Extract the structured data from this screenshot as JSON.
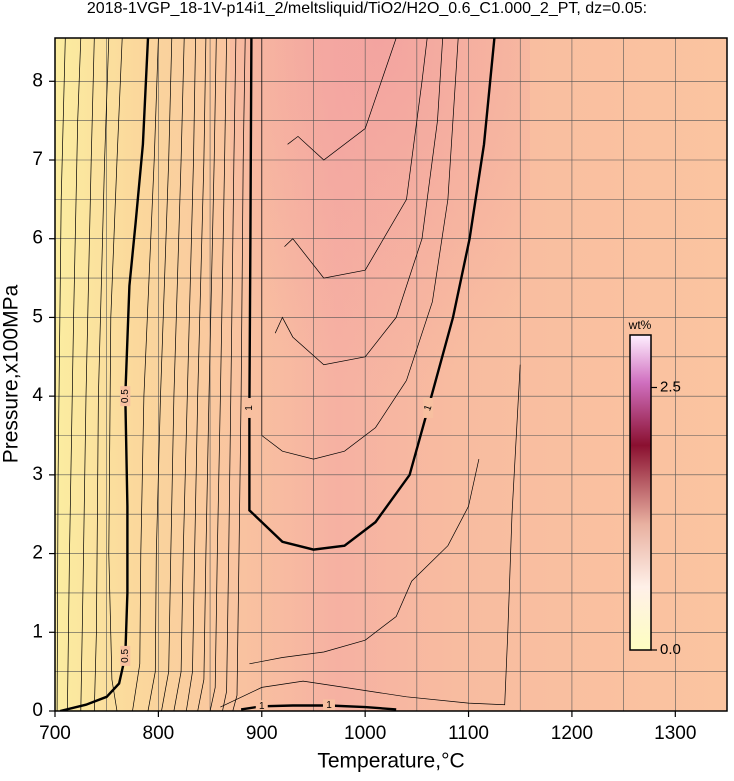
{
  "chart_data": {
    "type": "contour",
    "title": "2018-1VGP_18-1V-p14i1_2/meltsliquid/TiO2/H2O_0.6_C1.000_2_PT, dz=0.05:",
    "xlabel": "Temperature,°C",
    "ylabel": "Pressure,x100MPa",
    "xlim": [
      700,
      1350
    ],
    "ylim": [
      0,
      8.55
    ],
    "xticks": [
      700,
      800,
      900,
      1000,
      1100,
      1200,
      1300
    ],
    "yticks": [
      0,
      1,
      2,
      3,
      4,
      5,
      6,
      7,
      8
    ],
    "xgrid": [
      750,
      850,
      950,
      1050,
      1150,
      1250
    ],
    "ygrid": [
      0.5,
      1.5,
      2.5,
      3.5,
      4.5,
      5.5,
      6.5,
      7.5
    ],
    "grid": true,
    "colorbar": {
      "label": "wt%",
      "clim": [
        0,
        3
      ],
      "ticks": [
        {
          "value": 0,
          "label": "0.0"
        },
        {
          "value": 2.5,
          "label": "2.5"
        }
      ]
    },
    "contours": [
      {
        "level": 0.5,
        "bold": true,
        "x": [
          705,
          730,
          750,
          762,
          768,
          770,
          770,
          768,
          772,
          778,
          785,
          790
        ],
        "y": [
          0,
          0.08,
          0.18,
          0.35,
          0.7,
          1.5,
          2.6,
          4,
          5.4,
          6.2,
          7.2,
          8.55
        ]
      },
      {
        "level": 1,
        "bold": true,
        "x": [
          890,
          889,
          888,
          888,
          900,
          920,
          950,
          980,
          1010,
          1043,
          1061,
          1085,
          1101,
          1115,
          1125
        ],
        "y": [
          8.55,
          6,
          3.85,
          2.55,
          2.4,
          2.15,
          2.05,
          2.1,
          2.4,
          3,
          3.85,
          5,
          6,
          7.2,
          8.55
        ]
      },
      {
        "level": 1,
        "bold": true,
        "x": [
          880,
          900,
          930,
          965,
          1000,
          1030
        ],
        "y": [
          0.02,
          0.06,
          0.07,
          0.07,
          0.05,
          0.02
        ]
      },
      {
        "level": 0.45,
        "bold": false,
        "x": [
          760,
          755,
          752,
          754,
          760,
          765
        ],
        "y": [
          0,
          0.4,
          2,
          5,
          7,
          8.55
        ]
      },
      {
        "level": 0.4,
        "bold": false,
        "x": [
          738,
          740,
          742,
          748,
          752
        ],
        "y": [
          0,
          1,
          4,
          7,
          8.55
        ]
      },
      {
        "level": 0.35,
        "bold": false,
        "x": [
          725,
          727,
          730,
          735,
          738
        ],
        "y": [
          0,
          1.5,
          4,
          7,
          8.55
        ]
      },
      {
        "level": 0.3,
        "bold": false,
        "x": [
          712,
          714,
          718,
          722,
          725
        ],
        "y": [
          0,
          2,
          5,
          7.5,
          8.55
        ]
      },
      {
        "level": 0.25,
        "bold": false,
        "x": [
          702,
          703,
          706,
          710
        ],
        "y": [
          0,
          3,
          6.5,
          8.55
        ]
      },
      {
        "level": 0.55,
        "bold": false,
        "x": [
          775,
          782,
          783,
          786,
          796,
          800
        ],
        "y": [
          0,
          0.6,
          2,
          4,
          7,
          8.55
        ]
      },
      {
        "level": 0.6,
        "bold": false,
        "x": [
          790,
          797,
          798,
          802,
          810,
          813
        ],
        "y": [
          0,
          0.5,
          2,
          4,
          7,
          8.55
        ]
      },
      {
        "level": 0.65,
        "bold": false,
        "x": [
          803,
          810,
          812,
          815,
          822,
          825
        ],
        "y": [
          0,
          0.5,
          2,
          4,
          7,
          8.55
        ]
      },
      {
        "level": 0.7,
        "bold": false,
        "x": [
          815,
          822,
          824,
          828,
          834,
          836
        ],
        "y": [
          0,
          0.5,
          2,
          4,
          7,
          8.55
        ]
      },
      {
        "level": 0.75,
        "bold": false,
        "x": [
          827,
          833,
          835,
          838,
          844,
          846
        ],
        "y": [
          0,
          0.5,
          2,
          4,
          7,
          8.55
        ]
      },
      {
        "level": 0.8,
        "bold": false,
        "x": [
          838,
          844,
          846,
          849,
          854,
          856
        ],
        "y": [
          0,
          0.4,
          2,
          4,
          7,
          8.55
        ]
      },
      {
        "level": 0.85,
        "bold": false,
        "x": [
          850,
          855,
          857,
          860,
          864,
          866
        ],
        "y": [
          0,
          0.3,
          2,
          4,
          7,
          8.55
        ]
      },
      {
        "level": 0.9,
        "bold": false,
        "x": [
          862,
          866,
          868,
          870,
          873,
          875
        ],
        "y": [
          0,
          0.25,
          2,
          4,
          7,
          8.55
        ]
      },
      {
        "level": 0.95,
        "bold": false,
        "x": [
          872,
          876,
          878,
          880,
          882,
          884
        ],
        "y": [
          0,
          0.2,
          2,
          4,
          7,
          8.55
        ]
      },
      {
        "level": 1.05,
        "bold": false,
        "x": [
          900,
          900,
          920,
          950,
          980,
          1010,
          1040,
          1065,
          1080,
          1090
        ],
        "y": [
          8.55,
          3.5,
          3.3,
          3.2,
          3.3,
          3.6,
          4.2,
          5.2,
          6.5,
          8.55
        ]
      },
      {
        "level": 1.1,
        "bold": false,
        "x": [
          913,
          920,
          930,
          960,
          1000,
          1030,
          1055,
          1070,
          1075
        ],
        "y": [
          4.8,
          5,
          4.75,
          4.4,
          4.5,
          5,
          6,
          7.5,
          8.55
        ]
      },
      {
        "level": 1.15,
        "bold": false,
        "x": [
          922,
          930,
          960,
          1000,
          1040,
          1055,
          1060
        ],
        "y": [
          5.9,
          6,
          5.5,
          5.6,
          6.5,
          8,
          8.55
        ]
      },
      {
        "level": 1.2,
        "bold": false,
        "x": [
          925,
          935,
          960,
          1000,
          1030
        ],
        "y": [
          7.2,
          7.3,
          7,
          7.4,
          8.55
        ]
      },
      {
        "level": 0.95,
        "bold": false,
        "x": [
          888,
          920,
          960,
          1000,
          1030,
          1045,
          1080,
          1100,
          1110
        ],
        "y": [
          0.6,
          0.68,
          0.75,
          0.9,
          1.2,
          1.65,
          2.1,
          2.6,
          3.2
        ]
      },
      {
        "level": 0.95,
        "bold": false,
        "x": [
          860,
          900,
          940,
          980,
          1040,
          1100,
          1135,
          1138,
          1142,
          1150
        ],
        "y": [
          0.05,
          0.3,
          0.38,
          0.3,
          0.18,
          0.1,
          0.08,
          1,
          2.5,
          4.4
        ]
      }
    ]
  }
}
